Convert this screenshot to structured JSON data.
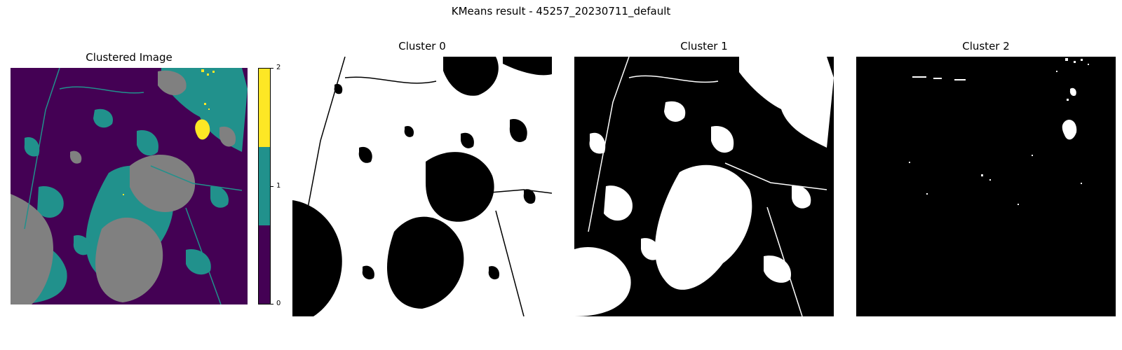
{
  "figure": {
    "title": "KMeans result - 45257_20230711_default"
  },
  "panels": [
    {
      "id": "clustered",
      "title": "Clustered Image"
    },
    {
      "id": "cluster0",
      "title": "Cluster 0"
    },
    {
      "id": "cluster1",
      "title": "Cluster 1"
    },
    {
      "id": "cluster2",
      "title": "Cluster 2"
    }
  ],
  "colorbar": {
    "ticks": [
      "0",
      "1",
      "2"
    ],
    "colors": [
      "#440154",
      "#21918c",
      "#fde725"
    ]
  },
  "colors": {
    "nodata_gray": "#808080",
    "mask_white": "#ffffff",
    "mask_black": "#000000"
  }
}
